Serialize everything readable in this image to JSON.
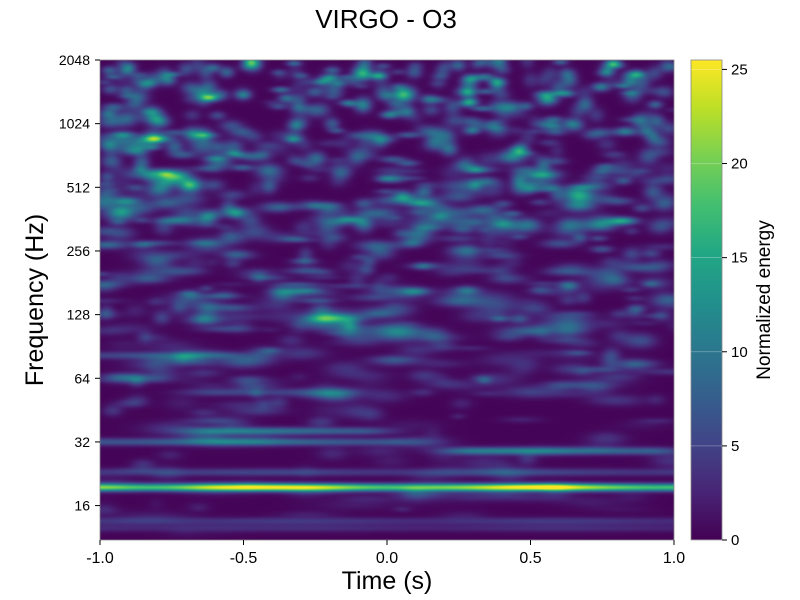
{
  "chart_data": {
    "type": "heatmap",
    "title": "VIRGO - O3",
    "xlabel": "Time (s)",
    "ylabel": "Frequency (Hz)",
    "xlim": [
      -1.0,
      1.0
    ],
    "ylim": [
      11,
      2048
    ],
    "yscale": "log2",
    "xticks": [
      "-1.0",
      "-0.5",
      "0.0",
      "0.5",
      "1.0"
    ],
    "xtick_values": [
      -1.0,
      -0.5,
      0.0,
      0.5,
      1.0
    ],
    "yticks": [
      "16",
      "32",
      "64",
      "128",
      "256",
      "512",
      "1024",
      "2048"
    ],
    "ytick_values": [
      16,
      32,
      64,
      128,
      256,
      512,
      1024,
      2048
    ],
    "colormap": "viridis",
    "colorbar": {
      "label": "Normalized energy",
      "range": [
        0,
        25.5
      ],
      "ticks": [
        "0",
        "5",
        "10",
        "15",
        "20",
        "25"
      ],
      "tick_values": [
        0,
        5,
        10,
        15,
        20,
        25
      ]
    },
    "features": [
      {
        "type": "band",
        "freq": 19.5,
        "t_start": -1.0,
        "t_end": 1.0,
        "energy": 25
      },
      {
        "type": "band",
        "freq": 23,
        "t_start": -1.0,
        "t_end": 1.0,
        "energy": 5
      },
      {
        "type": "band",
        "freq": 13.5,
        "t_start": -1.0,
        "t_end": 1.0,
        "energy": 4
      },
      {
        "type": "band",
        "freq": 12.5,
        "t_start": -1.0,
        "t_end": 1.0,
        "energy": 3
      },
      {
        "type": "band",
        "freq": 32,
        "t_start": -1.0,
        "t_end": 0.0,
        "energy": 9
      },
      {
        "type": "band",
        "freq": 36,
        "t_start": -0.6,
        "t_end": -0.1,
        "energy": 10
      },
      {
        "type": "band",
        "freq": 29,
        "t_start": 0.3,
        "t_end": 0.9,
        "energy": 11
      },
      {
        "type": "band",
        "freq": 82,
        "t_start": -1.0,
        "t_end": -0.6,
        "energy": 6
      },
      {
        "type": "band",
        "freq": 55,
        "t_start": -0.6,
        "t_end": -0.2,
        "energy": 5
      },
      {
        "type": "blob",
        "freq": 165,
        "t": 0.1,
        "energy": 9
      },
      {
        "type": "blob",
        "freq": 430,
        "t": 0.12,
        "energy": 12
      },
      {
        "type": "blob",
        "freq": 355,
        "t": 0.82,
        "energy": 14
      },
      {
        "type": "blob",
        "freq": 870,
        "t": -0.8,
        "energy": 12
      }
    ],
    "background": "noise rising with frequency, strongest above 512 Hz"
  }
}
